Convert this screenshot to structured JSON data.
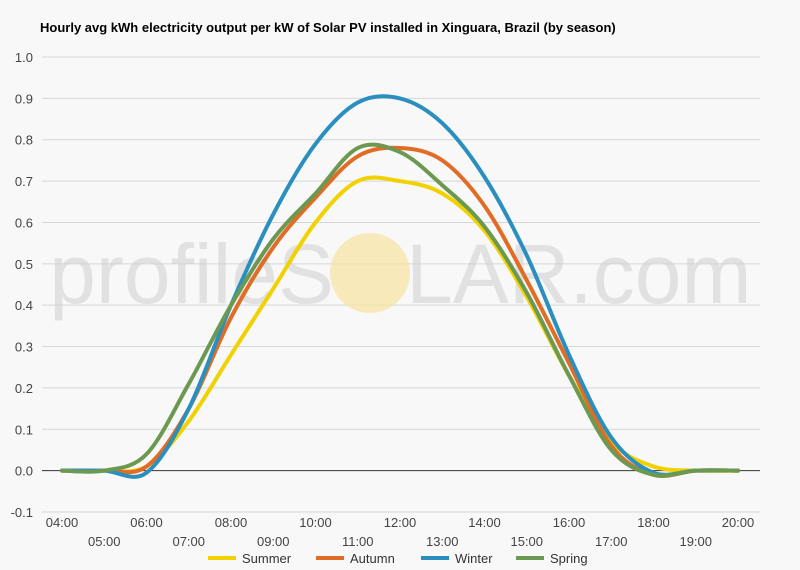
{
  "chart_data": {
    "type": "line",
    "title": "Hourly avg kWh electricity output per kW of Solar PV installed in Xinguara, Brazil (by season)",
    "xlabel": "",
    "ylabel": "",
    "ylim": [
      -0.1,
      1.0
    ],
    "yticks": [
      "-0.1",
      "0.0",
      "0.1",
      "0.2",
      "0.3",
      "0.4",
      "0.5",
      "0.6",
      "0.7",
      "0.8",
      "0.9",
      "1.0"
    ],
    "x": [
      "04:00",
      "05:00",
      "06:00",
      "07:00",
      "08:00",
      "09:00",
      "10:00",
      "11:00",
      "12:00",
      "13:00",
      "14:00",
      "15:00",
      "16:00",
      "17:00",
      "18:00",
      "19:00",
      "20:00"
    ],
    "grid": true,
    "legend": "bottom",
    "watermark": {
      "left": "profileS",
      "right": "LAR.com",
      "sun_color": "#f7e2a0"
    },
    "series": [
      {
        "name": "Summer",
        "color": "#f2d100",
        "values": [
          0.0,
          0.0,
          0.01,
          0.12,
          0.28,
          0.44,
          0.6,
          0.7,
          0.7,
          0.67,
          0.58,
          0.42,
          0.23,
          0.07,
          0.01,
          0.0,
          0.0
        ]
      },
      {
        "name": "Autumn",
        "color": "#e06c25",
        "values": [
          0.0,
          0.0,
          0.01,
          0.15,
          0.37,
          0.54,
          0.66,
          0.76,
          0.78,
          0.75,
          0.64,
          0.46,
          0.26,
          0.06,
          -0.01,
          0.0,
          0.0
        ]
      },
      {
        "name": "Winter",
        "color": "#2a8fbf",
        "values": [
          0.0,
          0.0,
          -0.005,
          0.15,
          0.4,
          0.62,
          0.79,
          0.89,
          0.9,
          0.84,
          0.71,
          0.52,
          0.28,
          0.08,
          -0.005,
          0.0,
          0.0
        ]
      },
      {
        "name": "Spring",
        "color": "#6b9952",
        "values": [
          0.0,
          0.0,
          0.04,
          0.21,
          0.4,
          0.56,
          0.67,
          0.78,
          0.77,
          0.69,
          0.59,
          0.43,
          0.23,
          0.05,
          -0.01,
          0.0,
          0.0
        ]
      }
    ]
  }
}
